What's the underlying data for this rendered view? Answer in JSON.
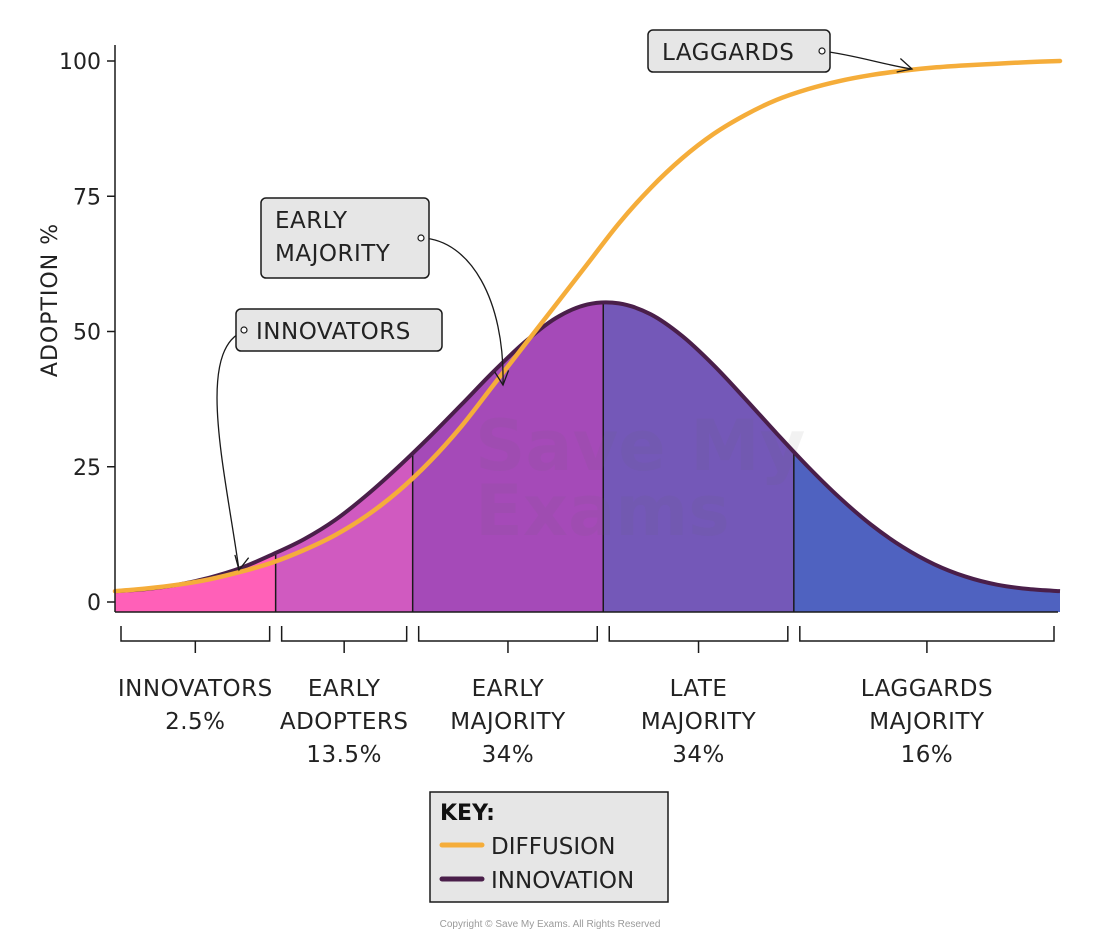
{
  "chart_data": {
    "type": "area",
    "ylabel": "ADOPTION %",
    "ylim": [
      0,
      100
    ],
    "yticks": [
      "0",
      "25",
      "50",
      "75",
      "100"
    ],
    "grid": false,
    "segments": [
      {
        "label": "INNOVATORS",
        "share": "2.5%",
        "color": "#ff60b8"
      },
      {
        "label": "EARLY ADOPTERS",
        "share": "13.5%",
        "color": "#d05ac0"
      },
      {
        "label": "EARLY MAJORITY",
        "share": "34%",
        "color": "#a54ab8"
      },
      {
        "label": "LATE MAJORITY",
        "share": "34%",
        "color": "#7458b8"
      },
      {
        "label": "LAGGARDS MAJORITY",
        "share": "16%",
        "color": "#4f62c0"
      }
    ],
    "series": [
      {
        "name": "DIFFUSION",
        "color": "#f5ad3a",
        "values": [
          2,
          2.5,
          3.2,
          4.2,
          5.6,
          7.3,
          9.6,
          12.4,
          16,
          20.5,
          26,
          32.5,
          40,
          47.5,
          55,
          62.5,
          70,
          76.5,
          82,
          86.5,
          90,
          92.8,
          94.8,
          96.3,
          97.4,
          98.2,
          98.8,
          99.2,
          99.5,
          99.8,
          100
        ]
      },
      {
        "name": "INNOVATION",
        "color": "#4a1f4a",
        "values": [
          2,
          2.4,
          3.2,
          4.5,
          6.3,
          8.8,
          11.6,
          15.2,
          19.8,
          25,
          30.6,
          36.5,
          42.5,
          48,
          52.5,
          55,
          55.2,
          53.2,
          49.2,
          43.8,
          37.6,
          31.2,
          25,
          19.3,
          14.3,
          10.2,
          7,
          4.7,
          3.2,
          2.4,
          2
        ]
      }
    ],
    "segment_bounds": [
      0,
      5.1,
      9.45,
      15.5,
      21.55,
      30
    ],
    "callouts": [
      {
        "text": [
          "INNOVATORS"
        ]
      },
      {
        "text": [
          "EARLY",
          "MAJORITY"
        ]
      },
      {
        "text": [
          "LAGGARDS"
        ]
      }
    ],
    "legend": {
      "title": "KEY:",
      "items": [
        {
          "label": "DIFFUSION",
          "color": "#f5ad3a"
        },
        {
          "label": "INNOVATION",
          "color": "#4a1f4a"
        }
      ]
    },
    "watermark": "Save My Exams",
    "copyright": "Copyright © Save My Exams. All Rights Reserved"
  }
}
